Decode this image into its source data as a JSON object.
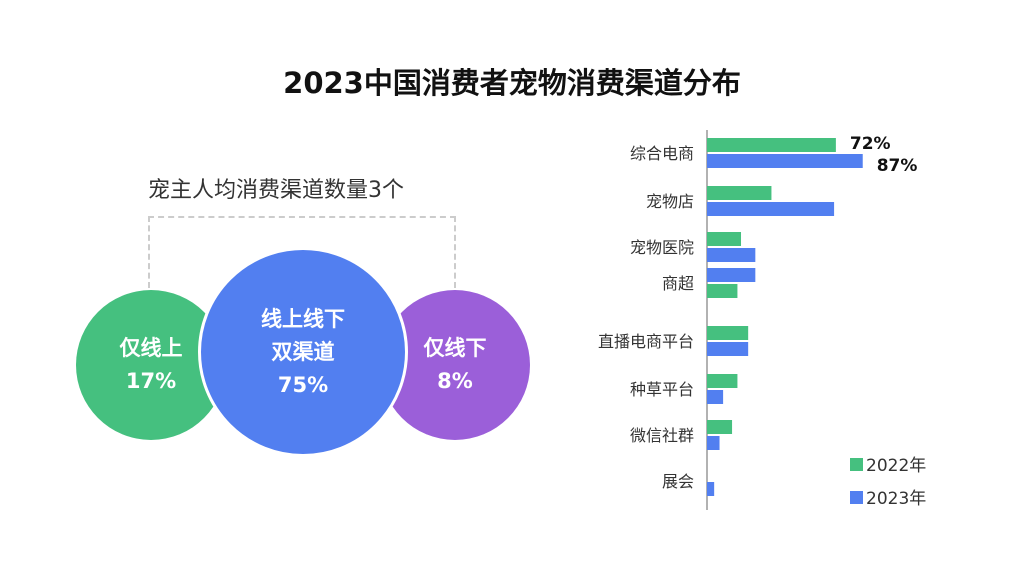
{
  "title": "2023中国消费者宠物消费渠道分布",
  "venn": {
    "subtitle": "宠主人均消费渠道数量3个",
    "online": {
      "label": "仅线上",
      "value": "17%",
      "color": "#45c07f"
    },
    "both": {
      "label1": "线上线下",
      "label2": "双渠道",
      "value": "75%",
      "color": "#527ff0"
    },
    "offline": {
      "label": "仅线下",
      "value": "8%",
      "color": "#9b5fd9"
    }
  },
  "chart_data": {
    "type": "bar",
    "orientation": "horizontal",
    "categories": [
      "综合电商",
      "宠物店",
      "宠物医院",
      "商超",
      "直播电商平台",
      "种草平台",
      "微信社群",
      "展会"
    ],
    "series": [
      {
        "name": "2022年",
        "color": "#45c07f",
        "values": [
          72,
          36,
          19,
          17,
          23,
          17,
          14,
          0
        ]
      },
      {
        "name": "2023年",
        "color": "#527ff0",
        "values": [
          87,
          71,
          27,
          27,
          23,
          9,
          7,
          4
        ]
      }
    ],
    "bar_order_reversed": [
      "商超"
    ],
    "data_labels": [
      {
        "category": "综合电商",
        "series": "2022年",
        "text": "72%"
      },
      {
        "category": "综合电商",
        "series": "2023年",
        "text": "87%"
      }
    ],
    "legend": "bottom-right",
    "grid": false,
    "unit": "%"
  }
}
